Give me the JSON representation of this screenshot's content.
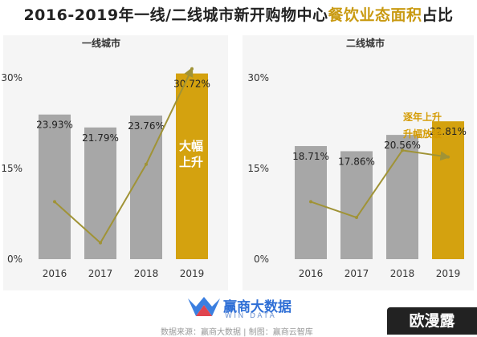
{
  "title": {
    "part1": "2016-2019年一线/二线城市新开购物中心",
    "part2": "餐饮业态面积",
    "part3": "占比"
  },
  "colors": {
    "bar_gray": "#a7a7a7",
    "bar_gold": "#d4a20f",
    "line": "#a09336",
    "annotation": "#d49a00"
  },
  "chart_data": [
    {
      "type": "bar",
      "title": "一线城市",
      "categories": [
        "2016",
        "2017",
        "2018",
        "2019"
      ],
      "values": [
        23.93,
        21.79,
        23.76,
        30.72
      ],
      "value_labels": [
        "23.93%",
        "21.79%",
        "23.76%",
        "30.72%"
      ],
      "y_ticks": [
        "30%",
        "15%",
        "0%"
      ],
      "ylim": [
        0,
        30
      ],
      "highlight_index": 3,
      "annotation": [
        "大幅",
        "上升"
      ],
      "trend_line": [
        9.5,
        2.7,
        15.7,
        31.5
      ]
    },
    {
      "type": "bar",
      "title": "二线城市",
      "categories": [
        "2016",
        "2017",
        "2018",
        "2019"
      ],
      "values": [
        18.71,
        17.86,
        20.56,
        22.81
      ],
      "value_labels": [
        "18.71%",
        "17.86%",
        "20.56%",
        "22.81%"
      ],
      "y_ticks": [
        "30%",
        "15%",
        "0%"
      ],
      "ylim": [
        0,
        30
      ],
      "highlight_index": 3,
      "annotation": [
        "逐年上升",
        "升幅放缓"
      ],
      "trend_line": [
        9.5,
        6.9,
        18.0,
        16.9
      ]
    }
  ],
  "logo": {
    "main": "赢商大数据",
    "sub": "WIN DATA"
  },
  "source": "数据来源：赢商大数据 | 制图：赢商云智库",
  "corner_text": "欧漫露"
}
